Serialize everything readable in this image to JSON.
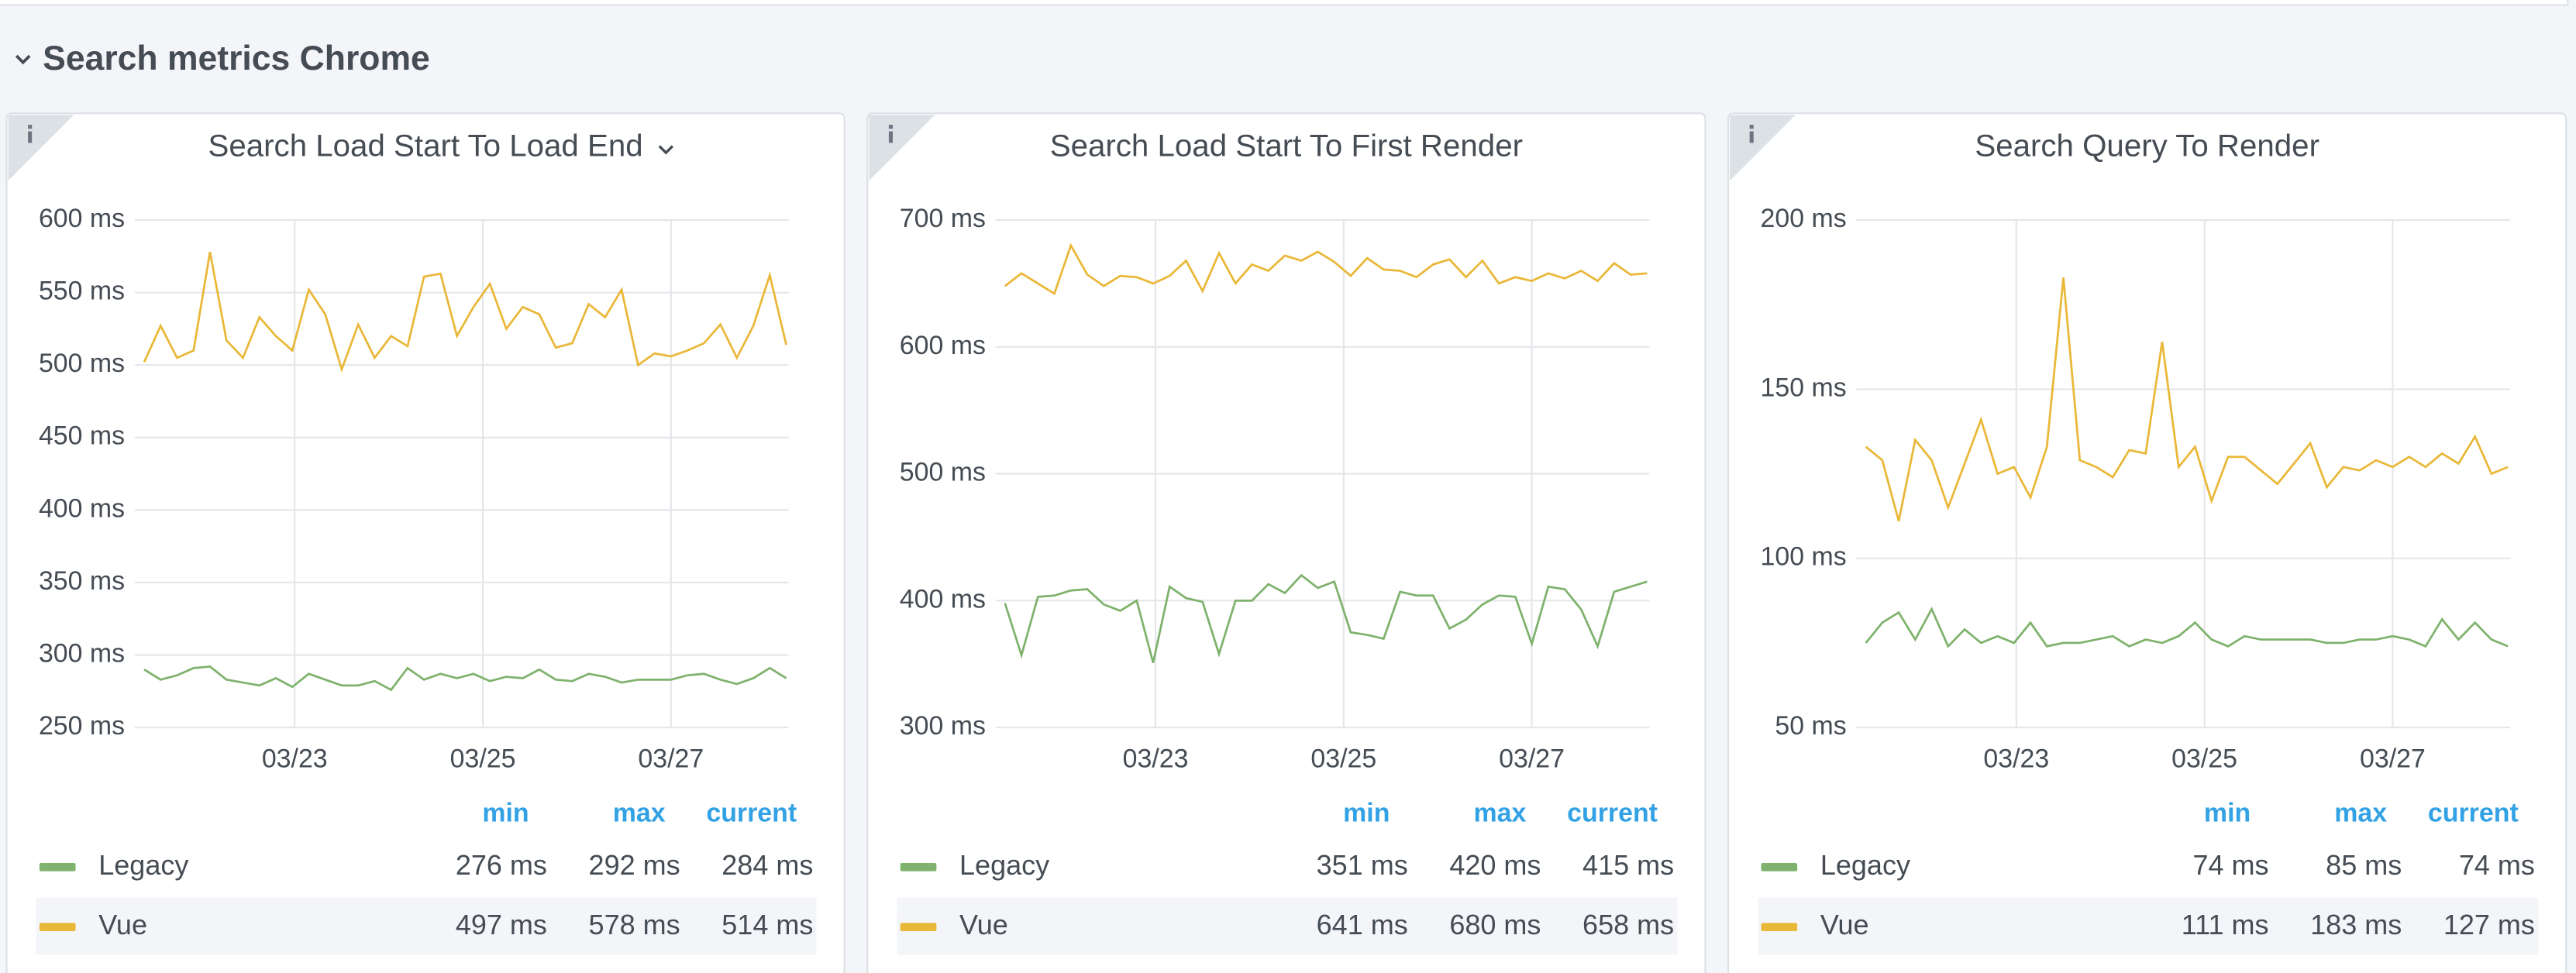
{
  "section_title": "Search metrics Chrome",
  "chart_data": [
    {
      "type": "line",
      "title": "Search Load Start To Load End",
      "x": [
        21.4,
        21.575,
        21.75,
        21.925,
        22.1,
        22.275,
        22.45,
        22.625,
        22.8,
        22.975,
        23.15,
        23.325,
        23.5,
        23.675,
        23.85,
        24.025,
        24.2,
        24.375,
        24.55,
        24.725,
        24.9,
        25.075,
        25.25,
        25.425,
        25.6,
        25.775,
        25.95,
        26.125,
        26.3,
        26.475,
        26.65,
        26.825,
        27.0,
        27.175,
        27.35,
        27.525,
        27.7,
        27.875,
        28.05,
        28.225
      ],
      "xlim": [
        21.3,
        28.25
      ],
      "xticks": [
        {
          "value": 23,
          "label": "03/23"
        },
        {
          "value": 25,
          "label": "03/25"
        },
        {
          "value": 27,
          "label": "03/27"
        }
      ],
      "ylim": [
        250,
        600
      ],
      "yticks": [
        {
          "value": 250,
          "label": "250 ms"
        },
        {
          "value": 300,
          "label": "300 ms"
        },
        {
          "value": 350,
          "label": "350 ms"
        },
        {
          "value": 400,
          "label": "400 ms"
        },
        {
          "value": 450,
          "label": "450 ms"
        },
        {
          "value": 500,
          "label": "500 ms"
        },
        {
          "value": 550,
          "label": "550 ms"
        },
        {
          "value": 600,
          "label": "600 ms"
        }
      ],
      "grid": true,
      "legend_columns": [
        "min",
        "max",
        "current"
      ],
      "series": [
        {
          "name": "Legacy",
          "color": "#7eb26d",
          "stats": [
            "276 ms",
            "292 ms",
            "284 ms"
          ],
          "values": [
            290,
            283,
            286,
            291,
            292,
            283,
            281,
            279,
            284,
            278,
            287,
            283,
            279,
            279,
            282,
            276,
            291,
            283,
            287,
            284,
            287,
            282,
            285,
            284,
            290,
            283,
            282,
            287,
            285,
            281,
            283,
            283,
            283,
            286,
            287,
            283,
            280,
            284,
            291,
            284
          ]
        },
        {
          "name": "Vue",
          "color": "#eab839",
          "stats": [
            "497 ms",
            "578 ms",
            "514 ms"
          ],
          "values": [
            502,
            527,
            505,
            510,
            578,
            517,
            505,
            533,
            520,
            510,
            552,
            535,
            497,
            528,
            505,
            520,
            513,
            561,
            563,
            520,
            540,
            556,
            525,
            540,
            535,
            512,
            515,
            542,
            533,
            552,
            500,
            508,
            506,
            510,
            515,
            528,
            505,
            527,
            562,
            514
          ]
        }
      ]
    },
    {
      "type": "line",
      "title": "Search Load Start To First Render",
      "x": [
        21.4,
        21.575,
        21.75,
        21.925,
        22.1,
        22.275,
        22.45,
        22.625,
        22.8,
        22.975,
        23.15,
        23.325,
        23.5,
        23.675,
        23.85,
        24.025,
        24.2,
        24.375,
        24.55,
        24.725,
        24.9,
        25.075,
        25.25,
        25.425,
        25.6,
        25.775,
        25.95,
        26.125,
        26.3,
        26.475,
        26.65,
        26.825,
        27.0,
        27.175,
        27.35,
        27.525,
        27.7,
        27.875,
        28.05,
        28.225
      ],
      "xlim": [
        21.3,
        28.25
      ],
      "xticks": [
        {
          "value": 23,
          "label": "03/23"
        },
        {
          "value": 25,
          "label": "03/25"
        },
        {
          "value": 27,
          "label": "03/27"
        }
      ],
      "ylim": [
        300,
        700
      ],
      "yticks": [
        {
          "value": 300,
          "label": "300 ms"
        },
        {
          "value": 400,
          "label": "400 ms"
        },
        {
          "value": 500,
          "label": "500 ms"
        },
        {
          "value": 600,
          "label": "600 ms"
        },
        {
          "value": 700,
          "label": "700 ms"
        }
      ],
      "grid": true,
      "legend_columns": [
        "min",
        "max",
        "current"
      ],
      "series": [
        {
          "name": "Legacy",
          "color": "#7eb26d",
          "stats": [
            "351 ms",
            "420 ms",
            "415 ms"
          ],
          "values": [
            398,
            357,
            403,
            404,
            408,
            409,
            397,
            392,
            400,
            351,
            411,
            402,
            399,
            358,
            400,
            400,
            413,
            406,
            420,
            410,
            415,
            375,
            373,
            370,
            407,
            404,
            404,
            378,
            385,
            397,
            404,
            403,
            366,
            411,
            409,
            393,
            364,
            407,
            411,
            415
          ]
        },
        {
          "name": "Vue",
          "color": "#eab839",
          "stats": [
            "641 ms",
            "680 ms",
            "658 ms"
          ],
          "values": [
            648,
            658,
            650,
            642,
            680,
            657,
            648,
            656,
            655,
            650,
            656,
            668,
            644,
            674,
            650,
            665,
            660,
            672,
            668,
            675,
            667,
            656,
            670,
            661,
            660,
            655,
            665,
            669,
            655,
            668,
            650,
            655,
            652,
            658,
            654,
            660,
            652,
            666,
            657,
            658
          ]
        }
      ]
    },
    {
      "type": "line",
      "title": "Search Query To Render",
      "x": [
        21.4,
        21.575,
        21.75,
        21.925,
        22.1,
        22.275,
        22.45,
        22.625,
        22.8,
        22.975,
        23.15,
        23.325,
        23.5,
        23.675,
        23.85,
        24.025,
        24.2,
        24.375,
        24.55,
        24.725,
        24.9,
        25.075,
        25.25,
        25.425,
        25.6,
        25.775,
        25.95,
        26.125,
        26.3,
        26.475,
        26.65,
        26.825,
        27.0,
        27.175,
        27.35,
        27.525,
        27.7,
        27.875,
        28.05,
        28.225
      ],
      "xlim": [
        21.3,
        28.25
      ],
      "xticks": [
        {
          "value": 23,
          "label": "03/23"
        },
        {
          "value": 25,
          "label": "03/25"
        },
        {
          "value": 27,
          "label": "03/27"
        }
      ],
      "ylim": [
        50,
        200
      ],
      "yticks": [
        {
          "value": 50,
          "label": "50 ms"
        },
        {
          "value": 100,
          "label": "100 ms"
        },
        {
          "value": 150,
          "label": "150 ms"
        },
        {
          "value": 200,
          "label": "200 ms"
        }
      ],
      "grid": true,
      "legend_columns": [
        "min",
        "max",
        "current"
      ],
      "series": [
        {
          "name": "Legacy",
          "color": "#7eb26d",
          "stats": [
            "74 ms",
            "85 ms",
            "74 ms"
          ],
          "values": [
            75,
            81,
            84,
            76,
            85,
            74,
            79,
            75,
            77,
            75,
            81,
            74,
            75,
            75,
            76,
            77,
            74,
            76,
            75,
            77,
            81,
            76,
            74,
            77,
            76,
            76,
            76,
            76,
            75,
            75,
            76,
            76,
            77,
            76,
            74,
            82,
            76,
            81,
            76,
            74
          ]
        },
        {
          "name": "Vue",
          "color": "#eab839",
          "stats": [
            "111 ms",
            "183 ms",
            "127 ms"
          ],
          "values": [
            133,
            129,
            111,
            135,
            129,
            115,
            128,
            141,
            125,
            127,
            118,
            133,
            183,
            129,
            127,
            124,
            132,
            131,
            164,
            127,
            133,
            117,
            130,
            130,
            126,
            122,
            128,
            134,
            121,
            127,
            126,
            129,
            127,
            130,
            127,
            131,
            128,
            136,
            125,
            127
          ]
        }
      ]
    }
  ]
}
